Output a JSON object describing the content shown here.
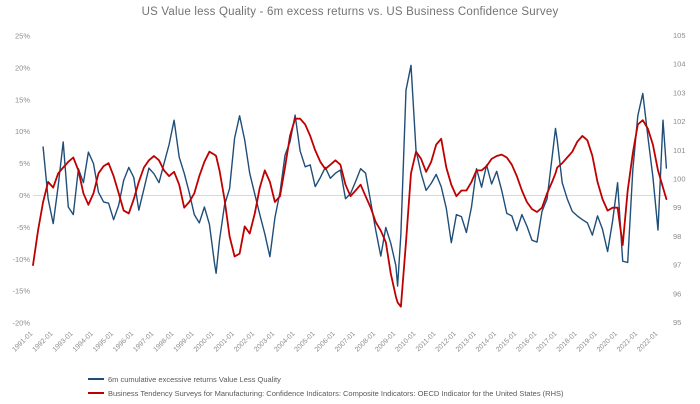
{
  "title": "US Value less Quality - 6m excess returns vs. US Business Confidence Survey",
  "colors": {
    "value_series": "#1f4e79",
    "confidence_series": "#c00000",
    "axis_text": "#8c8c8c",
    "title_text": "#737373",
    "zero_gridline": "#d9d9d9"
  },
  "chart_data": {
    "type": "line",
    "title": "US Value less Quality - 6m excess returns vs. US Business Confidence Survey",
    "xlabel": "",
    "ylabel_left": "%",
    "ylabel_right": "index",
    "grid": "zero-line-only",
    "legend_position": "bottom-left",
    "left_axis": {
      "min": -20,
      "max": 25,
      "tick_labels": [
        "25%",
        "20%",
        "15%",
        "10%",
        "5%",
        "0%",
        "-5%",
        "-10%",
        "-15%",
        "-20%"
      ]
    },
    "right_axis": {
      "min": 95,
      "max": 105,
      "tick_labels": [
        "105",
        "104",
        "103",
        "102",
        "101",
        "100",
        "99",
        "98",
        "97",
        "96",
        "95"
      ]
    },
    "x_tick_labels": [
      "1991-01",
      "1992-01",
      "1993-01",
      "1994-01",
      "1995-01",
      "1996-01",
      "1997-01",
      "1998-01",
      "1999-01",
      "2000-01",
      "2001-01",
      "2002-01",
      "2003-01",
      "2004-01",
      "2005-01",
      "2006-01",
      "2007-01",
      "2008-01",
      "2009-01",
      "2010-01",
      "2011-01",
      "2012-01",
      "2013-01",
      "2014-01",
      "2015-01",
      "2016-01",
      "2017-01",
      "2018-01",
      "2019-01",
      "2020-01",
      "2021-01",
      "2022-01"
    ],
    "x": [
      "1991-01",
      "1991-04",
      "1991-07",
      "1991-10",
      "1992-01",
      "1992-04",
      "1992-07",
      "1992-10",
      "1993-01",
      "1993-04",
      "1993-07",
      "1993-10",
      "1994-01",
      "1994-04",
      "1994-07",
      "1994-10",
      "1995-01",
      "1995-04",
      "1995-07",
      "1995-10",
      "1996-01",
      "1996-04",
      "1996-07",
      "1996-10",
      "1997-01",
      "1997-04",
      "1997-07",
      "1997-10",
      "1998-01",
      "1998-04",
      "1998-07",
      "1998-10",
      "1999-01",
      "1999-04",
      "1999-07",
      "1999-10",
      "2000-01",
      "2000-02",
      "2000-04",
      "2000-07",
      "2000-10",
      "2001-01",
      "2001-04",
      "2001-07",
      "2001-10",
      "2002-01",
      "2002-04",
      "2002-07",
      "2002-10",
      "2003-01",
      "2003-04",
      "2003-07",
      "2003-10",
      "2004-01",
      "2004-04",
      "2004-07",
      "2004-10",
      "2005-01",
      "2005-04",
      "2005-07",
      "2005-10",
      "2006-01",
      "2006-04",
      "2006-07",
      "2006-10",
      "2007-01",
      "2007-04",
      "2007-07",
      "2007-10",
      "2008-01",
      "2008-04",
      "2008-07",
      "2008-10",
      "2009-01",
      "2009-02",
      "2009-04",
      "2009-07",
      "2009-10",
      "2010-01",
      "2010-04",
      "2010-07",
      "2010-10",
      "2011-01",
      "2011-04",
      "2011-07",
      "2011-10",
      "2012-01",
      "2012-04",
      "2012-07",
      "2012-10",
      "2013-01",
      "2013-04",
      "2013-07",
      "2013-10",
      "2014-01",
      "2014-04",
      "2014-07",
      "2014-10",
      "2015-01",
      "2015-04",
      "2015-07",
      "2015-10",
      "2016-01",
      "2016-04",
      "2016-07",
      "2016-10",
      "2016-12",
      "2017-01",
      "2017-04",
      "2017-07",
      "2017-10",
      "2018-01",
      "2018-04",
      "2018-07",
      "2018-10",
      "2019-01",
      "2019-04",
      "2019-07",
      "2019-10",
      "2020-01",
      "2020-04",
      "2020-07",
      "2020-10",
      "2021-01",
      "2021-04",
      "2021-07",
      "2021-10",
      "2022-01",
      "2022-04",
      "2022-06"
    ],
    "series": [
      {
        "name": "6m cumulative excessive returns Value Less Quality",
        "axis": "left",
        "color": "#1f4e79",
        "values": [
          null,
          null,
          7.6,
          -0.5,
          -4.4,
          1.5,
          8.4,
          -1.8,
          -3.0,
          4.2,
          2.0,
          6.8,
          5.0,
          0.5,
          -1.0,
          -1.2,
          -3.8,
          -1.5,
          2.4,
          4.4,
          2.8,
          -2.3,
          1.0,
          4.3,
          3.4,
          2.0,
          5.0,
          8.0,
          11.8,
          6.0,
          3.5,
          0.5,
          -3.0,
          -4.3,
          -1.8,
          -4.5,
          -10.5,
          -12.2,
          -7.0,
          -1.5,
          1.1,
          9.0,
          12.5,
          8.7,
          3.5,
          0.2,
          -3.0,
          -6.0,
          -9.6,
          -3.5,
          0.5,
          6.3,
          8.4,
          12.6,
          7.0,
          4.5,
          4.8,
          1.4,
          2.8,
          4.4,
          2.7,
          3.5,
          4.0,
          -0.5,
          0.3,
          2.2,
          4.2,
          3.5,
          -1.0,
          -5.4,
          -9.5,
          -5.0,
          -7.5,
          -11.0,
          -14.2,
          -6.0,
          16.5,
          20.4,
          7.1,
          3.5,
          0.8,
          1.9,
          3.3,
          1.4,
          -2.0,
          -7.4,
          -3.0,
          -3.3,
          -5.8,
          -1.8,
          4.2,
          1.3,
          4.8,
          1.8,
          3.8,
          0.8,
          -2.8,
          -3.2,
          -5.5,
          -3.0,
          -4.8,
          -7.0,
          -7.3,
          -2.5,
          -0.5,
          6.0,
          10.5,
          8.7,
          2.0,
          -0.5,
          -2.5,
          -3.2,
          -3.8,
          -4.3,
          -6.2,
          -3.2,
          -5.3,
          -8.8,
          -4.0,
          2.0,
          -10.3,
          -10.5,
          4.0,
          12.5,
          16.0,
          9.2,
          2.9,
          -5.4,
          11.8,
          4.3
        ]
      },
      {
        "name": "Business Tendency Surveys for Manufacturing: Confidence Indicators: Composite Indicators: OECD Indicator for the United States (RHS)",
        "axis": "right",
        "color": "#c00000",
        "values": [
          97.0,
          98.2,
          99.2,
          99.9,
          99.7,
          100.2,
          100.4,
          100.6,
          100.75,
          100.3,
          99.5,
          99.1,
          99.5,
          100.2,
          100.45,
          100.55,
          100.1,
          99.5,
          98.9,
          98.8,
          99.3,
          99.9,
          100.4,
          100.65,
          100.8,
          100.65,
          100.3,
          100.1,
          100.25,
          99.8,
          99.0,
          99.2,
          99.5,
          100.1,
          100.6,
          100.95,
          100.85,
          100.8,
          100.3,
          99.3,
          98.0,
          97.3,
          97.4,
          98.35,
          98.1,
          98.8,
          99.7,
          100.3,
          99.9,
          99.2,
          99.4,
          100.4,
          101.5,
          102.1,
          102.1,
          101.9,
          101.5,
          101.0,
          100.6,
          100.35,
          100.5,
          100.65,
          100.5,
          99.8,
          99.4,
          99.6,
          99.8,
          99.4,
          99.0,
          98.5,
          98.2,
          97.8,
          96.7,
          95.9,
          95.7,
          95.55,
          97.8,
          100.2,
          100.95,
          100.7,
          100.25,
          100.6,
          101.2,
          101.4,
          100.4,
          99.8,
          99.4,
          99.6,
          99.6,
          99.9,
          100.3,
          100.3,
          100.45,
          100.7,
          100.8,
          100.85,
          100.75,
          100.5,
          100.1,
          99.6,
          99.2,
          98.95,
          98.85,
          99.0,
          99.5,
          99.9,
          100.2,
          100.4,
          100.55,
          100.75,
          100.95,
          101.3,
          101.5,
          101.35,
          100.8,
          99.9,
          99.3,
          98.9,
          99.0,
          99.0,
          97.7,
          99.6,
          100.9,
          101.9,
          102.05,
          101.75,
          101.2,
          100.3,
          99.7,
          99.3
        ]
      }
    ]
  },
  "legend": {
    "items": [
      {
        "label": "6m cumulative excessive returns Value Less Quality",
        "color": "#1f4e79"
      },
      {
        "label": "Business Tendency Surveys for Manufacturing: Confidence Indicators: Composite Indicators: OECD Indicator for the United States (RHS)",
        "color": "#c00000"
      }
    ]
  }
}
